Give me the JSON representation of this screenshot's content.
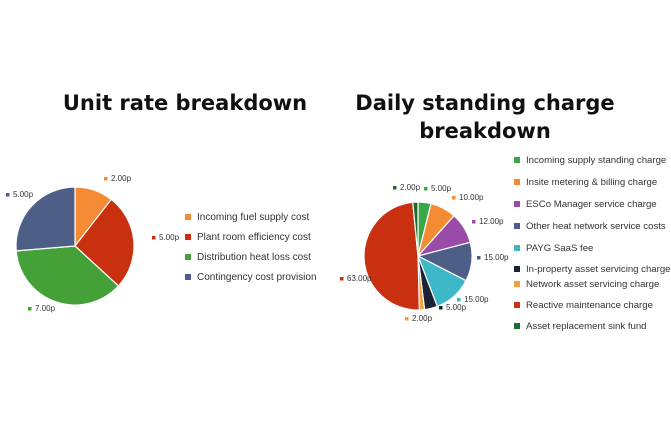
{
  "chart_data": [
    {
      "type": "pie",
      "title": "Unit rate breakdown",
      "legend_position": "right",
      "slices": [
        {
          "name": "Incoming fuel supply cost",
          "value": 2.0,
          "label": "2.00p",
          "color": "#F58A35"
        },
        {
          "name": "Plant room efficiency cost",
          "value": 5.0,
          "label": "5.00p",
          "color": "#C8300F"
        },
        {
          "name": "Distribution heat loss cost",
          "value": 7.0,
          "label": "7.00p",
          "color": "#44A137"
        },
        {
          "name": "Contingency cost provision",
          "value": 5.0,
          "label": "5.00p",
          "color": "#4E5F87"
        }
      ]
    },
    {
      "type": "pie",
      "title": "Daily standing charge breakdown",
      "legend_position": "right",
      "slices": [
        {
          "name": "Incoming supply standing charge",
          "value": 5.0,
          "label": "5.00p",
          "color": "#3AA846"
        },
        {
          "name": "Insite metering & billing charge",
          "value": 10.0,
          "label": "10.00p",
          "color": "#F58A35"
        },
        {
          "name": "ESCo Manager service charge",
          "value": 12.0,
          "label": "12.00p",
          "color": "#9A4BA8"
        },
        {
          "name": "Other heat network service costs",
          "value": 15.0,
          "label": "15.00p",
          "color": "#4E5F87"
        },
        {
          "name": "PAYG SaaS fee",
          "value": 15.0,
          "label": "15.00p",
          "color": "#3DB8C9"
        },
        {
          "name": "In-property asset servicing charge",
          "value": 5.0,
          "label": "5.00p",
          "color": "#1B2235"
        },
        {
          "name": "Network asset servicing charge",
          "value": 2.0,
          "label": "2.00p",
          "color": "#F5A03A"
        },
        {
          "name": "Reactive maintenance charge",
          "value": 63.0,
          "label": "63.00p",
          "color": "#C8300F"
        },
        {
          "name": "Asset replacement sink fund",
          "value": 2.0,
          "label": "2.00p",
          "color": "#1E6B32"
        }
      ]
    }
  ]
}
